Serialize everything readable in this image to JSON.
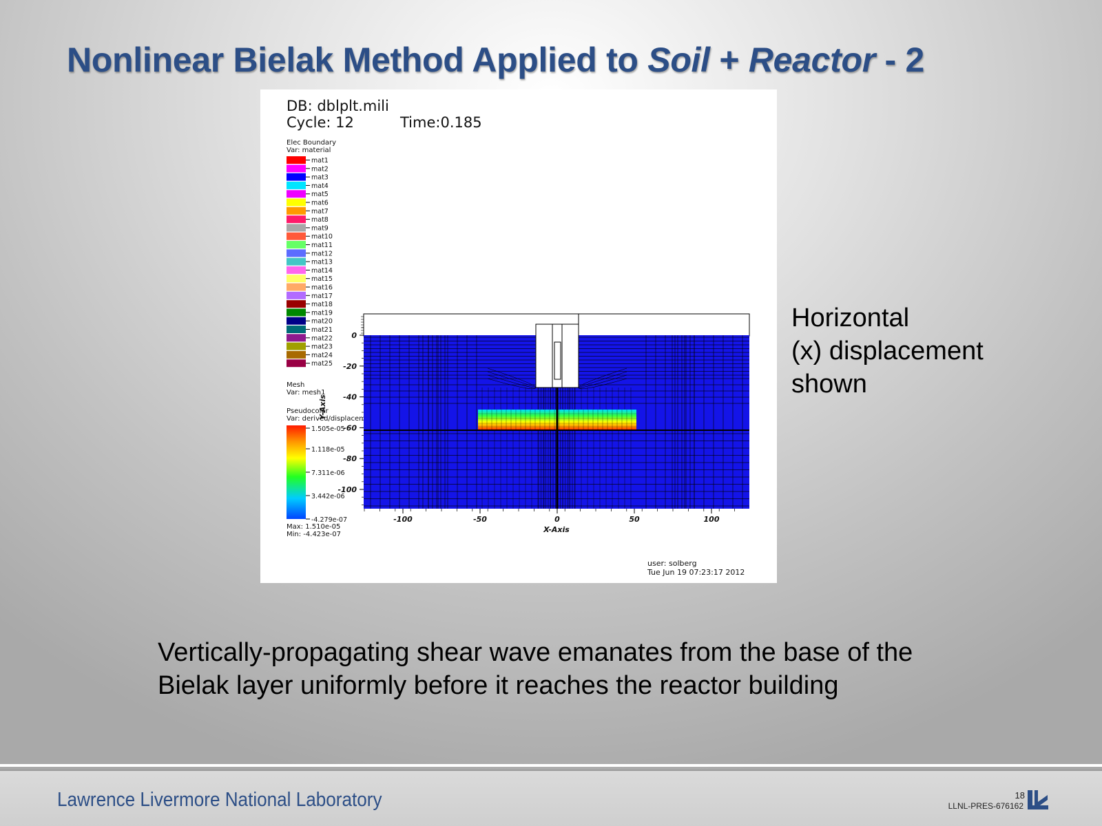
{
  "slide": {
    "title_part1": "Nonlinear Bielak Method Applied to ",
    "title_part2": "Soil",
    "title_part3": " + ",
    "title_part4": "Reactor",
    "title_part5": " - 2",
    "side_note": [
      "Horizontal",
      "(x) displacement",
      "shown"
    ],
    "caption": [
      "Vertically-propagating shear wave emanates from the base of the",
      "Bielak layer uniformly before it reaches the reactor building"
    ]
  },
  "figure": {
    "db_line": "DB: dblplt.mili",
    "cycle_line": "Cycle: 12",
    "time_line": "Time:0.185",
    "legend_header1": "Elec Boundary",
    "legend_header2": "Var: material",
    "materials": [
      {
        "label": "mat1",
        "color": "#ff0000"
      },
      {
        "label": "mat2",
        "color": "#ff00ff"
      },
      {
        "label": "mat3",
        "color": "#0000ff"
      },
      {
        "label": "mat4",
        "color": "#00e5ff"
      },
      {
        "label": "mat5",
        "color": "#ee00ff"
      },
      {
        "label": "mat6",
        "color": "#ffff00"
      },
      {
        "label": "mat7",
        "color": "#ff9900"
      },
      {
        "label": "mat8",
        "color": "#ff1a6a"
      },
      {
        "label": "mat9",
        "color": "#a8a8a8"
      },
      {
        "label": "mat10",
        "color": "#ff5a3a"
      },
      {
        "label": "mat11",
        "color": "#66ff66"
      },
      {
        "label": "mat12",
        "color": "#5c6cff"
      },
      {
        "label": "mat13",
        "color": "#44c6c6"
      },
      {
        "label": "mat14",
        "color": "#ff66ee"
      },
      {
        "label": "mat15",
        "color": "#ffff66"
      },
      {
        "label": "mat16",
        "color": "#ffaa66"
      },
      {
        "label": "mat17",
        "color": "#b26bff"
      },
      {
        "label": "mat18",
        "color": "#990000"
      },
      {
        "label": "mat19",
        "color": "#008800"
      },
      {
        "label": "mat20",
        "color": "#000088"
      },
      {
        "label": "mat21",
        "color": "#006b77"
      },
      {
        "label": "mat22",
        "color": "#8e1a8e"
      },
      {
        "label": "mat23",
        "color": "#a0a000"
      },
      {
        "label": "mat24",
        "color": "#a86a00"
      },
      {
        "label": "mat25",
        "color": "#990044"
      }
    ],
    "mesh_header1": "Mesh",
    "mesh_header2": "Var: mesh1",
    "pseudo_header1": "Pseudocolor",
    "pseudo_header2": "Var: derived/displacement/x",
    "colorbar_ticks": [
      "1.505e-05",
      "1.118e-05",
      "7.311e-06",
      "3.442e-06",
      "-4.279e-07"
    ],
    "max_label": "Max: 1.510e-05",
    "min_label": "Min: -4.423e-07",
    "y_axis_label": "Y-Axis",
    "x_axis_label": "X-Axis",
    "y_ticks": [
      "0",
      "-20",
      "-40",
      "-60",
      "-80",
      "-100"
    ],
    "x_ticks": [
      "-100",
      "-50",
      "0",
      "50",
      "100"
    ],
    "user_line": "user: solberg",
    "date_line": "Tue Jun 19 07:23:17 2012"
  },
  "footer": {
    "lab_name": "Lawrence Livermore National Laboratory",
    "page_number": "18",
    "doc_id": "LLNL-PRES-676162"
  },
  "colors": {
    "title": "#2c4e86",
    "soil_field": "#1414e8",
    "footer_text": "#2c4e86"
  }
}
